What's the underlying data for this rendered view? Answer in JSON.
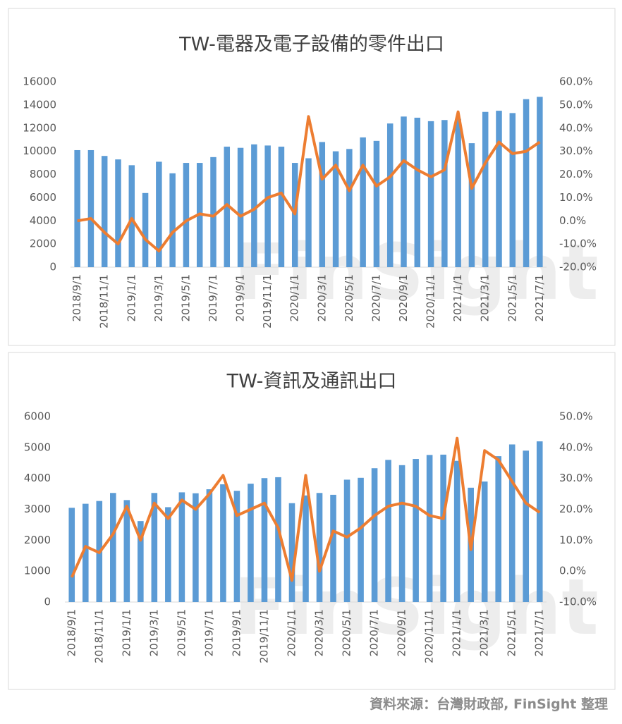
{
  "chart_data": [
    {
      "type": "bar-line",
      "title": "TW-電器及電子設備的零件出口",
      "categories": [
        "2018/9/1",
        null,
        "2018/11/1",
        null,
        "2019/1/1",
        null,
        "2019/3/1",
        null,
        "2019/5/1",
        null,
        "2019/7/1",
        null,
        "2019/9/1",
        null,
        "2019/11/1",
        null,
        "2020/1/1",
        null,
        "2020/3/1",
        null,
        "2020/5/1",
        null,
        "2020/7/1",
        null,
        "2020/9/1",
        null,
        "2020/11/1",
        null,
        "2021/1/1",
        null,
        "2021/3/1",
        null,
        "2021/5/1",
        null,
        "2021/7/1"
      ],
      "series": [
        {
          "type": "bar",
          "color": "#5b9bd5",
          "values": [
            10100,
            10100,
            9600,
            9300,
            8800,
            6400,
            9100,
            8100,
            9000,
            9000,
            9500,
            10400,
            10300,
            10600,
            10500,
            10400,
            9000,
            9400,
            10800,
            10000,
            10200,
            11200,
            10900,
            12400,
            13000,
            12900,
            12600,
            12700,
            12800,
            10700,
            13400,
            13500,
            13300,
            14500,
            14700
          ]
        },
        {
          "type": "line",
          "axis": "y2",
          "color": "#ed7d31",
          "values": [
            0,
            1,
            -5,
            -10,
            1,
            -8,
            -13,
            -5,
            0,
            3,
            2,
            7,
            2,
            5,
            10,
            12,
            3,
            45,
            18,
            24,
            13,
            24,
            15,
            19,
            26,
            22,
            19,
            22,
            47,
            14,
            25,
            34,
            29,
            30,
            34
          ]
        }
      ],
      "ylim": [
        0,
        16000
      ],
      "yticks": [
        0,
        2000,
        4000,
        6000,
        8000,
        10000,
        12000,
        14000,
        16000
      ],
      "y2lim": [
        -20,
        60
      ],
      "y2ticks": [
        {
          "value": -20,
          "label": "-20.0%"
        },
        {
          "value": -10,
          "label": "-10.0%"
        },
        {
          "value": 0,
          "label": "0.0%"
        },
        {
          "value": 10,
          "label": "10.0%"
        },
        {
          "value": 20,
          "label": "20.0%"
        },
        {
          "value": 30,
          "label": "30.0%"
        },
        {
          "value": 40,
          "label": "40.0%"
        },
        {
          "value": 50,
          "label": "50.0%"
        },
        {
          "value": 60,
          "label": "60.0%"
        }
      ]
    },
    {
      "type": "bar-line",
      "title": "TW-資訊及通訊出口",
      "categories": [
        "2018/9/1",
        null,
        "2018/11/1",
        null,
        "2019/1/1",
        null,
        "2019/3/1",
        null,
        "2019/5/1",
        null,
        "2019/7/1",
        null,
        "2019/9/1",
        null,
        "2019/11/1",
        null,
        "2020/1/1",
        null,
        "2020/3/1",
        null,
        "2020/5/1",
        null,
        "2020/7/1",
        null,
        "2020/9/1",
        null,
        "2020/11/1",
        null,
        "2021/1/1",
        null,
        "2021/3/1",
        null,
        "2021/5/1",
        null,
        "2021/7/1"
      ],
      "series": [
        {
          "type": "bar",
          "color": "#5b9bd5",
          "values": [
            3050,
            3180,
            3270,
            3530,
            3300,
            2620,
            3530,
            3070,
            3550,
            3520,
            3650,
            3810,
            3600,
            3830,
            4010,
            4040,
            3200,
            3450,
            3530,
            3470,
            3960,
            4020,
            4330,
            4600,
            4430,
            4630,
            4760,
            4770,
            4570,
            3700,
            3900,
            4720,
            5100,
            4900,
            5200
          ]
        },
        {
          "type": "line",
          "axis": "y2",
          "color": "#ed7d31",
          "values": [
            -2,
            8,
            6,
            12,
            21,
            10,
            22,
            17,
            23,
            20,
            25,
            31,
            18,
            20,
            22,
            14,
            -3,
            31,
            0,
            13,
            11,
            14,
            18,
            21,
            22,
            21,
            18,
            17,
            43,
            7,
            39,
            36,
            29,
            22,
            19
          ]
        }
      ],
      "ylim": [
        0,
        6000
      ],
      "yticks": [
        0,
        1000,
        2000,
        3000,
        4000,
        5000,
        6000
      ],
      "y2lim": [
        -10,
        50
      ],
      "y2ticks": [
        {
          "value": -10,
          "label": "-10.0%"
        },
        {
          "value": 0,
          "label": "0.0%"
        },
        {
          "value": 10,
          "label": "10.0%"
        },
        {
          "value": 20,
          "label": "20.0%"
        },
        {
          "value": 30,
          "label": "30.0%"
        },
        {
          "value": 40,
          "label": "40.0%"
        },
        {
          "value": 50,
          "label": "50.0%"
        }
      ]
    }
  ],
  "watermark": "FinSight",
  "source": "資料來源：台灣財政部, FinSight 整理"
}
